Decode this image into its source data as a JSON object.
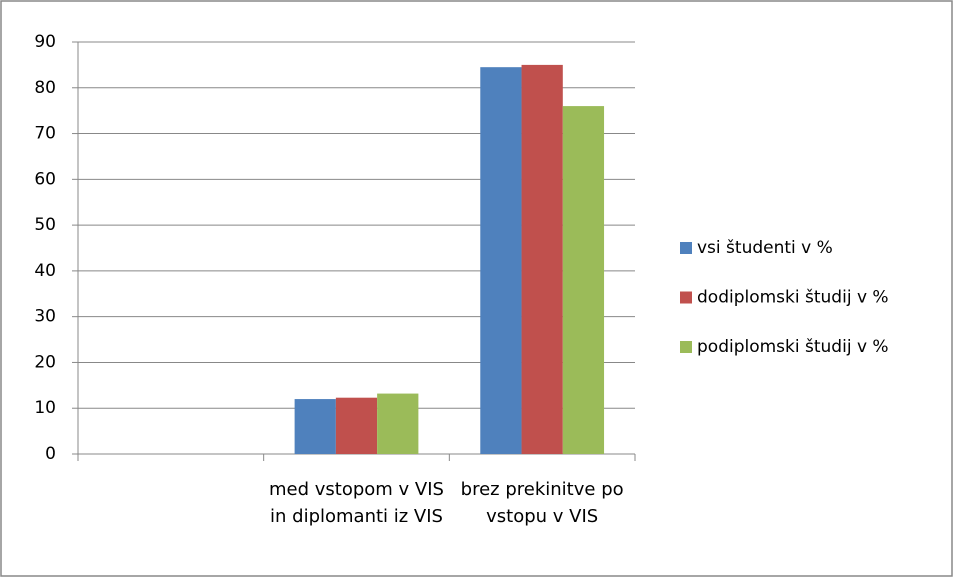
{
  "chart_data": {
    "type": "bar",
    "categories": [
      null,
      "med vstopom v VIS in diplomanti iz VIS",
      "brez prekinitve po vstopu v VIS"
    ],
    "series": [
      {
        "name": "vsi študenti v %",
        "color": "#4f81bd",
        "values": [
          null,
          12,
          84.5
        ]
      },
      {
        "name": "dodiplomski študij v %",
        "color": "#c0504d",
        "values": [
          null,
          12.3,
          85
        ]
      },
      {
        "name": "podiplomski študij v %",
        "color": "#9bbb59",
        "values": [
          null,
          13.2,
          76
        ]
      }
    ],
    "ylim": [
      0,
      90
    ],
    "yticks": [
      0,
      10,
      20,
      30,
      40,
      50,
      60,
      70,
      80,
      90
    ],
    "grid": true,
    "legend": "right"
  }
}
